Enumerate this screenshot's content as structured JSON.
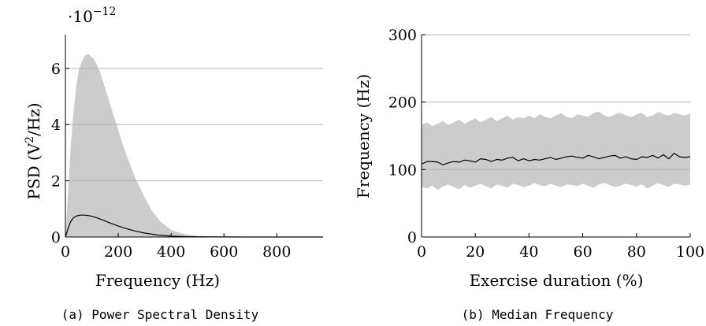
{
  "colors": {
    "band": "#cccccc",
    "line": "#000000",
    "grid": "#b3b3b3",
    "axis": "#000000"
  },
  "chart_data": [
    {
      "type": "area",
      "caption": "(a) Power Spectral Density",
      "xlabel": "Frequency (Hz)",
      "ylabel_main": "PSD (V",
      "ylabel_sup": "2",
      "ylabel_tail": "/Hz)",
      "y_multiplier_base": "·10",
      "y_multiplier_exp": "−12",
      "xlim": [
        0,
        975
      ],
      "ylim": [
        0,
        7.2
      ],
      "xticks": [
        0,
        200,
        400,
        600,
        800
      ],
      "xtick_labels": [
        "0",
        "200",
        "400",
        "600",
        "800"
      ],
      "yticks": [
        0,
        2,
        4,
        6
      ],
      "ytick_labels": [
        "0",
        "2",
        "4",
        "6"
      ],
      "grid": "horizontal",
      "series": [
        {
          "role": "band",
          "x": [
            0,
            10,
            20,
            30,
            40,
            50,
            60,
            70,
            80,
            90,
            100,
            110,
            120,
            130,
            140,
            150,
            160,
            180,
            200,
            220,
            240,
            260,
            280,
            300,
            330,
            360,
            400,
            450,
            500,
            550,
            600
          ],
          "lower": [
            0,
            0,
            0,
            0,
            0,
            0,
            0,
            0,
            0,
            0,
            0,
            0,
            0,
            0,
            0,
            0,
            0,
            0,
            0,
            0,
            0,
            0,
            0,
            0,
            0,
            0,
            0,
            0,
            0,
            0,
            0
          ],
          "upper": [
            0,
            1.6,
            3.2,
            4.4,
            5.3,
            5.9,
            6.2,
            6.4,
            6.5,
            6.5,
            6.4,
            6.3,
            6.1,
            5.9,
            5.6,
            5.3,
            5.0,
            4.4,
            3.8,
            3.2,
            2.7,
            2.2,
            1.8,
            1.4,
            0.9,
            0.55,
            0.25,
            0.1,
            0.04,
            0.01,
            0
          ]
        },
        {
          "role": "mean",
          "x": [
            0,
            10,
            20,
            30,
            40,
            50,
            60,
            70,
            80,
            90,
            100,
            110,
            120,
            140,
            160,
            180,
            200,
            230,
            260,
            300,
            350,
            400,
            450,
            500,
            600,
            700,
            800,
            975
          ],
          "values": [
            0,
            0.3,
            0.55,
            0.68,
            0.74,
            0.77,
            0.78,
            0.78,
            0.77,
            0.76,
            0.74,
            0.71,
            0.68,
            0.61,
            0.53,
            0.46,
            0.39,
            0.3,
            0.22,
            0.14,
            0.07,
            0.03,
            0.015,
            0.008,
            0.002,
            0.001,
            0,
            0
          ]
        }
      ]
    },
    {
      "type": "area",
      "caption": "(b) Median Frequency",
      "xlabel": "Exercise duration (%)",
      "ylabel": "Frequency (Hz)",
      "xlim": [
        0,
        100
      ],
      "ylim": [
        0,
        300
      ],
      "xticks": [
        0,
        20,
        40,
        60,
        80,
        100
      ],
      "xtick_labels": [
        "0",
        "20",
        "40",
        "60",
        "80",
        "100"
      ],
      "yticks": [
        0,
        100,
        200,
        300
      ],
      "ytick_labels": [
        "0",
        "100",
        "200",
        "300"
      ],
      "grid": "horizontal",
      "series": [
        {
          "role": "band",
          "x": [
            0,
            2,
            4,
            6,
            8,
            10,
            12,
            14,
            16,
            18,
            20,
            22,
            24,
            26,
            28,
            30,
            32,
            34,
            36,
            38,
            40,
            42,
            44,
            46,
            48,
            50,
            52,
            54,
            56,
            58,
            60,
            62,
            64,
            66,
            68,
            70,
            72,
            74,
            76,
            78,
            80,
            82,
            84,
            86,
            88,
            90,
            92,
            94,
            96,
            98,
            100
          ],
          "lower": [
            74,
            72,
            76,
            70,
            75,
            78,
            74,
            71,
            77,
            73,
            76,
            79,
            75,
            72,
            78,
            76,
            73,
            79,
            77,
            74,
            76,
            80,
            77,
            75,
            79,
            76,
            74,
            78,
            77,
            75,
            79,
            76,
            73,
            78,
            80,
            77,
            74,
            76,
            79,
            77,
            75,
            78,
            72,
            76,
            80,
            77,
            74,
            79,
            78,
            76,
            78
          ],
          "upper": [
            166,
            170,
            164,
            168,
            172,
            166,
            170,
            174,
            168,
            172,
            176,
            170,
            174,
            178,
            172,
            176,
            180,
            174,
            178,
            176,
            180,
            176,
            182,
            178,
            176,
            180,
            184,
            178,
            176,
            182,
            180,
            178,
            184,
            186,
            180,
            178,
            182,
            184,
            180,
            178,
            182,
            184,
            178,
            180,
            186,
            182,
            180,
            184,
            182,
            180,
            183
          ]
        },
        {
          "role": "median",
          "x": [
            0,
            2,
            4,
            6,
            8,
            10,
            12,
            14,
            16,
            18,
            20,
            22,
            24,
            26,
            28,
            30,
            32,
            34,
            36,
            38,
            40,
            42,
            44,
            46,
            48,
            50,
            52,
            54,
            56,
            58,
            60,
            62,
            64,
            66,
            68,
            70,
            72,
            74,
            76,
            78,
            80,
            82,
            84,
            86,
            88,
            90,
            92,
            94,
            96,
            98,
            100
          ],
          "values": [
            108,
            112,
            112,
            111,
            107,
            110,
            112,
            111,
            114,
            113,
            111,
            116,
            115,
            112,
            115,
            114,
            117,
            118,
            113,
            116,
            113,
            115,
            114,
            116,
            118,
            115,
            117,
            119,
            120,
            118,
            117,
            121,
            119,
            116,
            118,
            120,
            121,
            117,
            119,
            116,
            115,
            119,
            118,
            121,
            117,
            122,
            116,
            124,
            119,
            118,
            119
          ]
        }
      ]
    }
  ]
}
